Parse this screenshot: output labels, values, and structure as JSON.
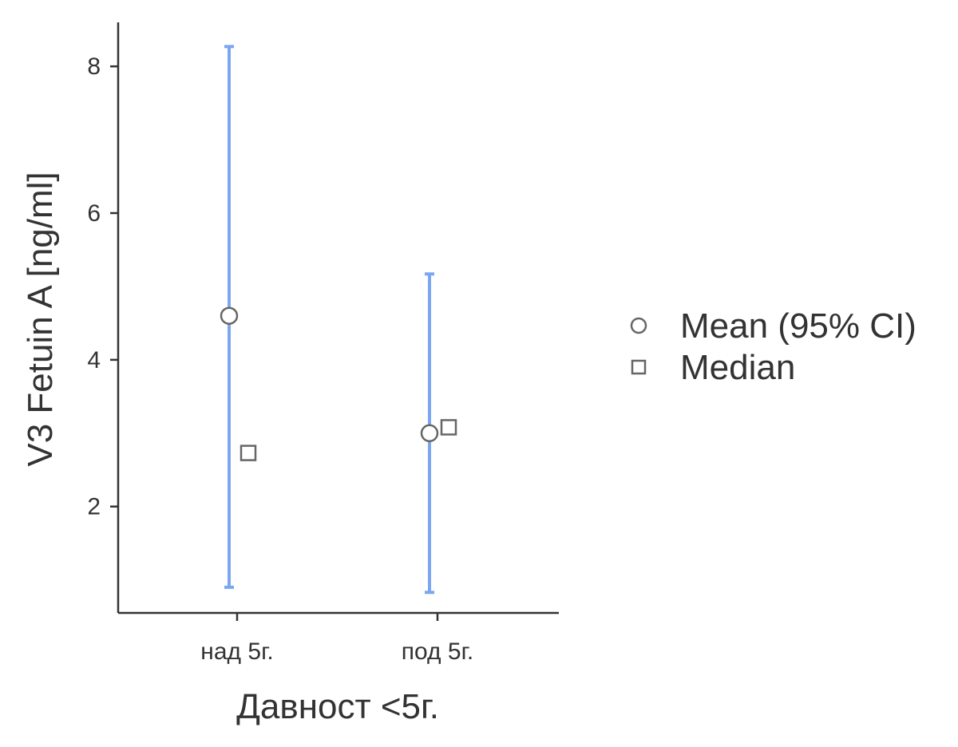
{
  "chart_data": {
    "type": "scatter",
    "xlabel": "Давност <5г.",
    "ylabel": "V3 Fetuin A [ng/ml]",
    "categories": [
      "над 5г.",
      "под 5г."
    ],
    "ylim": [
      0.55,
      8.6
    ],
    "yticks": [
      2,
      4,
      6,
      8
    ],
    "grid": false,
    "legend_position": "right",
    "series": [
      {
        "name": "Mean (95% CI)",
        "marker": "circle",
        "values": [
          4.6,
          3.0
        ],
        "ci_lower": [
          0.9,
          0.83
        ],
        "ci_upper": [
          8.27,
          5.17
        ]
      },
      {
        "name": "Median",
        "marker": "square",
        "values": [
          2.73,
          3.08
        ]
      }
    ],
    "colors": {
      "error_bar": "#7BA7F0",
      "axis": "#333333",
      "marker_stroke": "#666666",
      "marker_fill": "#ffffff"
    }
  }
}
